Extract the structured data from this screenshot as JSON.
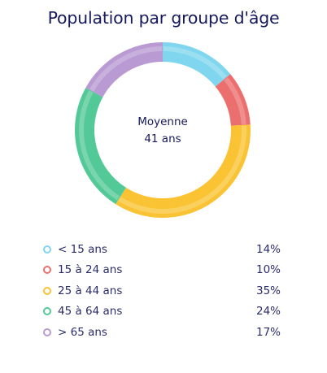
{
  "chart_data": {
    "type": "pie",
    "variant": "donut",
    "title": "Population par groupe d'âge",
    "center_text": [
      "Moyenne",
      "41 ans"
    ],
    "categories": [
      "< 15 ans",
      "15 à 24 ans",
      "25 à 44 ans",
      "45 à 64 ans",
      "> 65 ans"
    ],
    "values": [
      14,
      10,
      35,
      24,
      17
    ],
    "value_labels": [
      "14%",
      "10%",
      "35%",
      "24%",
      "17%"
    ],
    "colors": [
      "#7fd6ee",
      "#ec6f6f",
      "#f9c333",
      "#52c996",
      "#b99ad3"
    ],
    "legend_position": "bottom",
    "start_angle_deg": 0,
    "direction": "clockwise"
  }
}
